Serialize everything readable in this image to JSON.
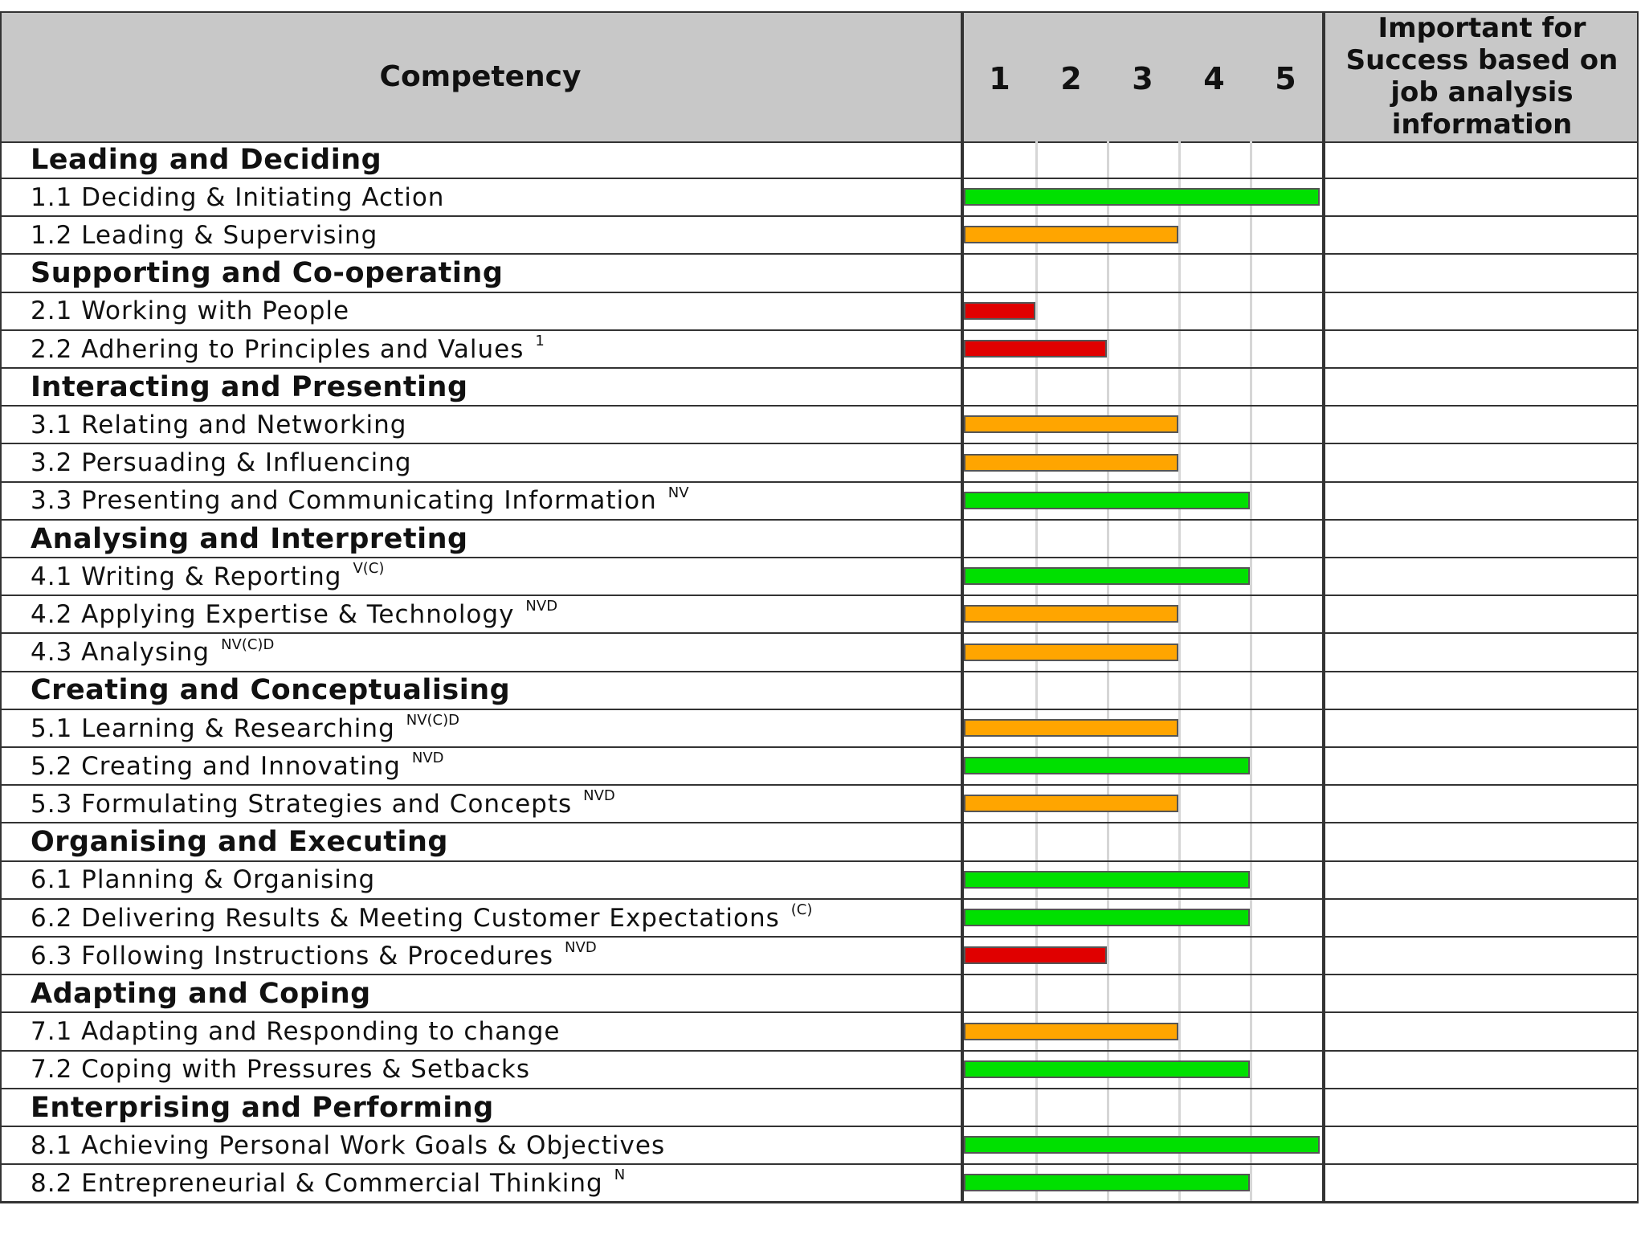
{
  "chart_data": {
    "type": "bar",
    "orientation": "horizontal",
    "header": {
      "competency": "Competency",
      "scale": [
        "1",
        "2",
        "3",
        "4",
        "5"
      ],
      "importance": "Important for Success based on job analysis information"
    },
    "xlim": [
      0,
      5
    ],
    "colors": {
      "green": "#00e000",
      "orange": "#ffa500",
      "red": "#e00000"
    },
    "rows": [
      {
        "label": "Leading and Deciding",
        "section": true
      },
      {
        "label": "1.1 Deciding & Initiating Action",
        "sup": "",
        "value": 5,
        "color": "green"
      },
      {
        "label": "1.2 Leading & Supervising",
        "sup": "",
        "value": 3,
        "color": "orange"
      },
      {
        "label": "Supporting and Co-operating",
        "section": true
      },
      {
        "label": "2.1 Working with People",
        "sup": "",
        "value": 1,
        "color": "red"
      },
      {
        "label": "2.2 Adhering to Principles and Values",
        "sup": "1",
        "value": 2,
        "color": "red"
      },
      {
        "label": "Interacting and Presenting",
        "section": true
      },
      {
        "label": "3.1 Relating and Networking",
        "sup": "",
        "value": 3,
        "color": "orange"
      },
      {
        "label": "3.2 Persuading & Influencing",
        "sup": "",
        "value": 3,
        "color": "orange"
      },
      {
        "label": "3.3 Presenting and Communicating Information",
        "sup": "NV",
        "value": 4,
        "color": "green"
      },
      {
        "label": "Analysing and Interpreting",
        "section": true
      },
      {
        "label": "4.1 Writing & Reporting",
        "sup": "V(C)",
        "value": 4,
        "color": "green"
      },
      {
        "label": "4.2 Applying Expertise & Technology",
        "sup": "NVD",
        "value": 3,
        "color": "orange"
      },
      {
        "label": "4.3 Analysing",
        "sup": "NV(C)D",
        "value": 3,
        "color": "orange"
      },
      {
        "label": "Creating and Conceptualising",
        "section": true
      },
      {
        "label": "5.1 Learning & Researching",
        "sup": "NV(C)D",
        "value": 3,
        "color": "orange"
      },
      {
        "label": "5.2 Creating and Innovating",
        "sup": "NVD",
        "value": 4,
        "color": "green"
      },
      {
        "label": "5.3 Formulating Strategies and Concepts",
        "sup": "NVD",
        "value": 3,
        "color": "orange"
      },
      {
        "label": "Organising and Executing",
        "section": true
      },
      {
        "label": "6.1 Planning & Organising",
        "sup": "",
        "value": 4,
        "color": "green"
      },
      {
        "label": "6.2 Delivering Results & Meeting Customer Expectations",
        "sup": "(C)",
        "value": 4,
        "color": "green"
      },
      {
        "label": "6.3 Following Instructions & Procedures",
        "sup": "NVD",
        "value": 2,
        "color": "red"
      },
      {
        "label": "Adapting and Coping",
        "section": true
      },
      {
        "label": "7.1 Adapting and Responding to change",
        "sup": "",
        "value": 3,
        "color": "orange"
      },
      {
        "label": "7.2 Coping with Pressures & Setbacks",
        "sup": "",
        "value": 4,
        "color": "green"
      },
      {
        "label": "Enterprising and Performing",
        "section": true
      },
      {
        "label": "8.1 Achieving Personal Work Goals & Objectives",
        "sup": "",
        "value": 5,
        "color": "green"
      },
      {
        "label": "8.2 Entrepreneurial & Commercial Thinking",
        "sup": "N",
        "value": 4,
        "color": "green"
      }
    ]
  }
}
